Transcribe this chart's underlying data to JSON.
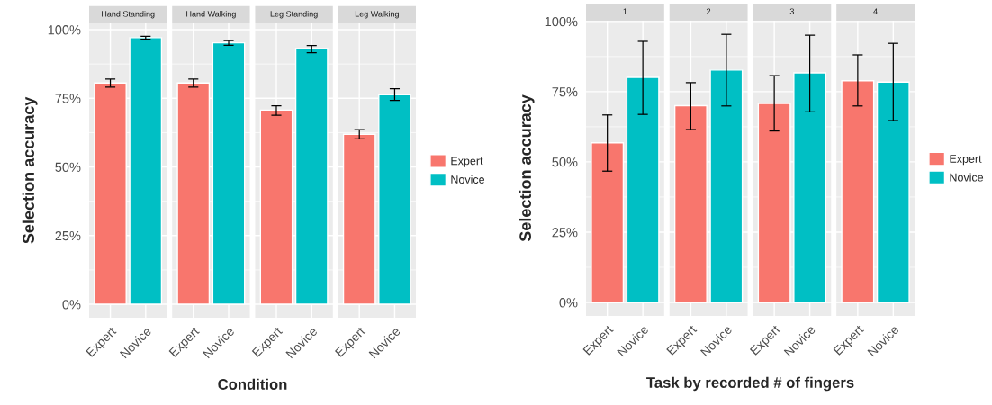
{
  "chart_data": [
    {
      "type": "bar",
      "ylabel": "Selection accuracy",
      "xlabel": "Condition",
      "annotations": [
        "Hand Standing",
        "Hand Walking",
        "Leg Standing",
        "Leg Walking"
      ],
      "categories": [
        "Expert",
        "Novice",
        "Expert",
        "Novice",
        "Expert",
        "Novice",
        "Expert",
        "Novice"
      ],
      "ylim": [
        -4.9,
        102.4
      ],
      "yticks": [
        {
          "value": 0,
          "label": "0%"
        },
        {
          "value": 25,
          "label": "25%"
        },
        {
          "value": 50,
          "label": "50%"
        },
        {
          "value": 75,
          "label": "75%"
        },
        {
          "value": 100,
          "label": "100%"
        }
      ],
      "grid": true,
      "legend": "right",
      "series": [
        {
          "name": "Expert",
          "color": "#f8766d",
          "values": [
            80.6,
            null,
            80.6,
            null,
            70.7,
            null,
            61.9,
            null
          ],
          "errors": [
            [
              79.1,
              82.0
            ],
            null,
            [
              79.1,
              82.0
            ],
            null,
            [
              68.8,
              72.3
            ],
            null,
            [
              60.2,
              63.6
            ],
            null
          ]
        },
        {
          "name": "Novice",
          "color": "#00bfc4",
          "values": [
            null,
            97.1,
            null,
            95.2,
            null,
            93.1,
            null,
            76.3
          ],
          "errors": [
            null,
            [
              96.5,
              97.6
            ],
            null,
            [
              94.3,
              96.0
            ],
            null,
            [
              91.6,
              94.2
            ],
            null,
            [
              74.2,
              78.5
            ]
          ]
        }
      ]
    },
    {
      "type": "bar",
      "ylabel": "Selection accuracy",
      "xlabel": "Task by recorded # of fingers",
      "annotations": [
        "1",
        "2",
        "3",
        "4"
      ],
      "categories": [
        "Expert",
        "Novice",
        "Expert",
        "Novice",
        "Expert",
        "Novice",
        "Expert",
        "Novice"
      ],
      "ylim": [
        -4.8,
        100.3
      ],
      "yticks": [
        {
          "value": 0,
          "label": "0%"
        },
        {
          "value": 25,
          "label": "25%"
        },
        {
          "value": 50,
          "label": "50%"
        },
        {
          "value": 75,
          "label": "75%"
        },
        {
          "value": 100,
          "label": "100%"
        }
      ],
      "grid": true,
      "legend": "right",
      "series": [
        {
          "name": "Expert",
          "color": "#f8766d",
          "values": [
            56.8,
            null,
            70.0,
            null,
            70.8,
            null,
            78.9,
            null
          ],
          "errors": [
            [
              46.7,
              66.7
            ],
            null,
            [
              61.5,
              78.2
            ],
            null,
            [
              61.0,
              80.7
            ],
            null,
            [
              69.9,
              88.1
            ],
            null
          ]
        },
        {
          "name": "Novice",
          "color": "#00bfc4",
          "values": [
            null,
            80.1,
            null,
            82.7,
            null,
            81.7,
            null,
            78.4
          ],
          "errors": [
            null,
            [
              66.9,
              92.9
            ],
            null,
            [
              69.9,
              95.4
            ],
            null,
            [
              67.8,
              95.1
            ],
            null,
            [
              64.7,
              92.2
            ]
          ]
        }
      ]
    }
  ]
}
